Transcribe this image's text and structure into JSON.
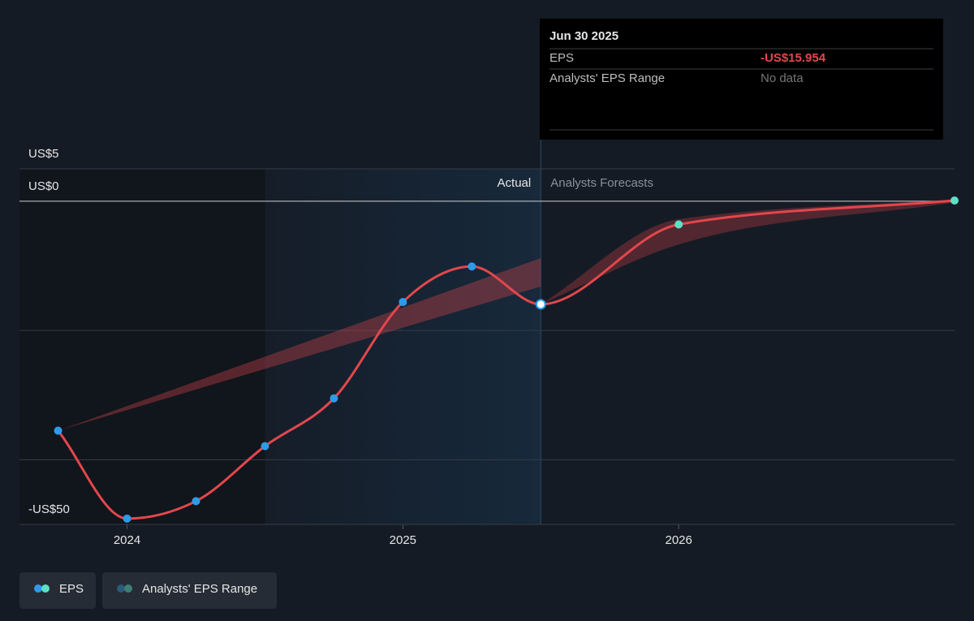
{
  "chart_data": {
    "type": "line",
    "x": [
      2023.75,
      2024.0,
      2024.25,
      2024.5,
      2024.75,
      2025.0,
      2025.25,
      2025.5,
      2026.0,
      2027.0
    ],
    "series": [
      {
        "name": "EPS",
        "color": "#e2474c",
        "values": [
          -35.5,
          -49.1,
          -46.4,
          -37.9,
          -30.5,
          -15.6,
          -10.1,
          -15.954,
          -3.6,
          0.1
        ]
      },
      {
        "name": "Analysts' EPS Range",
        "color": "#e2474c",
        "past": {
          "x": [
            2023.75,
            2025.5
          ],
          "low": [
            -35.5,
            -13.2
          ],
          "high": [
            -35.5,
            -8.8
          ]
        },
        "future": {
          "x": [
            2025.5,
            2026.0,
            2027.0
          ],
          "low": [
            -15.954,
            -6.7,
            -0.2
          ],
          "high": [
            -15.954,
            -2.8,
            0.3
          ]
        }
      }
    ],
    "actual_color": "#2d9be8",
    "forecast_color": "#5ce0c6",
    "shade_from": 2024.5,
    "forecast_from": 2025.5,
    "annotations": {
      "actual": "Actual",
      "forecast": "Analysts Forecasts"
    },
    "xlim": [
      2023.61,
      2027.0
    ],
    "xticks": [
      2024,
      2025,
      2026
    ],
    "ylim": [
      -50,
      5
    ],
    "yticks": [
      {
        "value": 5,
        "label": "US$5"
      },
      {
        "value": 0,
        "label": "US$0"
      },
      {
        "value": -20,
        "label": null
      },
      {
        "value": -40,
        "label": null
      },
      {
        "value": -50,
        "label": "-US$50"
      }
    ],
    "grid": true,
    "tooltip": {
      "date": "Jun 30 2025",
      "rows": [
        [
          "EPS",
          "-US$15.954"
        ],
        [
          "Analysts' EPS Range",
          "No data"
        ]
      ]
    }
  }
}
